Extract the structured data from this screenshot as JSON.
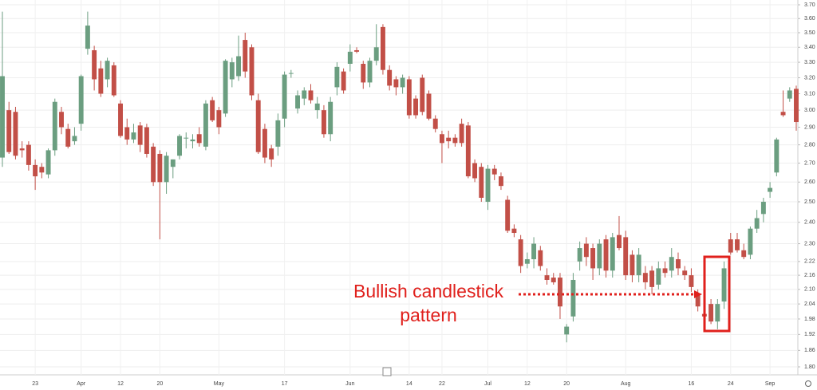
{
  "chart_data": {
    "type": "candlestick",
    "up_color": "#6b9e80",
    "down_color": "#c24f47",
    "log_scale": true,
    "grid": true,
    "ylim": [
      1.8,
      3.7
    ],
    "yticks": [
      {
        "value": 3.7,
        "label": "3.70"
      },
      {
        "value": 3.6,
        "label": "3.60"
      },
      {
        "value": 3.5,
        "label": "3.50"
      },
      {
        "value": 3.4,
        "label": "3.40"
      },
      {
        "value": 3.3,
        "label": "3.30"
      },
      {
        "value": 3.2,
        "label": "3.20"
      },
      {
        "value": 3.1,
        "label": "3.10"
      },
      {
        "value": 3.0,
        "label": "3.00"
      },
      {
        "value": 2.9,
        "label": "2.90"
      },
      {
        "value": 2.8,
        "label": "2.80"
      },
      {
        "value": 2.7,
        "label": "2.70"
      },
      {
        "value": 2.6,
        "label": "2.60"
      },
      {
        "value": 2.5,
        "label": "2.50"
      },
      {
        "value": 2.4,
        "label": "2.40"
      },
      {
        "value": 2.3,
        "label": "2.30"
      },
      {
        "value": 2.22,
        "label": "2.22"
      },
      {
        "value": 2.16,
        "label": "2.16"
      },
      {
        "value": 2.1,
        "label": "2.10"
      },
      {
        "value": 2.04,
        "label": "2.04"
      },
      {
        "value": 1.98,
        "label": "1.98"
      },
      {
        "value": 1.92,
        "label": "1.92"
      },
      {
        "value": 1.86,
        "label": "1.86"
      },
      {
        "value": 1.8,
        "label": "1.80"
      }
    ],
    "categories": [
      null,
      null,
      null,
      null,
      null,
      "23",
      null,
      null,
      null,
      null,
      null,
      null,
      "Apr",
      null,
      null,
      null,
      null,
      null,
      "12",
      null,
      null,
      null,
      null,
      null,
      "20",
      null,
      null,
      null,
      null,
      null,
      null,
      null,
      null,
      "May",
      null,
      null,
      null,
      null,
      null,
      null,
      null,
      null,
      null,
      "17",
      null,
      null,
      null,
      null,
      null,
      null,
      null,
      null,
      null,
      "Jun",
      null,
      null,
      null,
      null,
      null,
      null,
      null,
      null,
      "14",
      null,
      null,
      null,
      null,
      "22",
      null,
      null,
      null,
      null,
      null,
      null,
      "Jul",
      null,
      null,
      null,
      null,
      null,
      "12",
      null,
      null,
      null,
      null,
      null,
      "20",
      null,
      null,
      null,
      null,
      null,
      null,
      null,
      null,
      "Aug",
      null,
      null,
      null,
      null,
      null,
      null,
      null,
      null,
      null,
      "16",
      null,
      null,
      null,
      null,
      null,
      "24",
      null,
      null,
      null,
      null,
      null,
      "Sep",
      null,
      null,
      null,
      null
    ],
    "open": [
      2.73,
      3.0,
      2.99,
      2.78,
      2.8,
      2.69,
      2.68,
      2.64,
      2.77,
      2.99,
      2.89,
      2.82,
      2.92,
      3.39,
      3.38,
      3.26,
      3.19,
      3.28,
      3.04,
      2.9,
      2.83,
      2.91,
      2.9,
      2.79,
      2.75,
      2.6,
      2.68,
      2.74,
      2.84,
      2.82,
      2.86,
      2.79,
      3.06,
      3.0,
      2.98,
      3.19,
      3.21,
      3.45,
      3.4,
      3.06,
      2.89,
      2.78,
      2.79,
      2.95,
      3.23,
      3.01,
      3.07,
      3.12,
      3.0,
      3.0,
      2.86,
      3.14,
      3.24,
      3.29,
      3.38,
      3.29,
      3.17,
      3.31,
      3.54,
      3.25,
      3.19,
      3.14,
      3.19,
      3.07,
      3.2,
      3.1,
      2.95,
      2.86,
      2.84,
      2.84,
      2.92,
      2.91,
      2.7,
      2.68,
      2.5,
      2.67,
      2.63,
      2.51,
      2.37,
      2.32,
      2.21,
      2.23,
      2.27,
      2.16,
      2.15,
      2.15,
      1.92,
      1.99,
      2.22,
      2.3,
      2.28,
      2.19,
      2.32,
      2.18,
      2.34,
      2.33,
      2.25,
      2.16,
      2.17,
      2.18,
      2.12,
      2.19,
      2.18,
      2.23,
      2.18,
      2.16,
      2.08,
      2.0,
      2.04,
      1.97,
      2.05,
      2.32,
      2.32,
      2.27,
      2.25,
      2.37,
      2.44,
      2.55,
      2.65,
      2.99,
      3.07,
      3.13
    ],
    "high": [
      3.65,
      3.05,
      3.02,
      2.82,
      2.82,
      2.72,
      2.7,
      2.78,
      3.07,
      3.02,
      2.92,
      2.9,
      3.22,
      3.65,
      3.41,
      3.31,
      3.33,
      3.3,
      3.06,
      2.95,
      2.92,
      2.93,
      2.92,
      2.81,
      2.77,
      2.76,
      2.72,
      2.86,
      2.87,
      2.86,
      2.9,
      3.06,
      3.08,
      3.02,
      3.32,
      3.33,
      3.48,
      3.5,
      3.42,
      3.1,
      2.92,
      2.8,
      2.98,
      3.24,
      3.25,
      3.12,
      3.14,
      3.16,
      3.08,
      3.03,
      3.08,
      3.3,
      3.26,
      3.42,
      3.4,
      3.31,
      3.33,
      3.56,
      3.56,
      3.28,
      3.21,
      3.22,
      3.21,
      3.09,
      3.22,
      3.12,
      2.97,
      2.88,
      2.88,
      2.86,
      2.95,
      2.93,
      2.72,
      2.7,
      2.69,
      2.69,
      2.65,
      2.53,
      2.39,
      2.34,
      2.26,
      2.33,
      2.29,
      2.19,
      2.17,
      2.17,
      1.96,
      2.17,
      2.31,
      2.33,
      2.3,
      2.32,
      2.34,
      2.35,
      2.43,
      2.36,
      2.27,
      2.28,
      2.2,
      2.2,
      2.22,
      2.22,
      2.28,
      2.26,
      2.2,
      2.19,
      2.1,
      2.05,
      2.06,
      2.06,
      2.22,
      2.35,
      2.35,
      2.3,
      2.38,
      2.46,
      2.52,
      2.6,
      2.84,
      3.12,
      3.14,
      3.15
    ],
    "low": [
      2.68,
      2.75,
      2.72,
      2.73,
      2.66,
      2.56,
      2.62,
      2.62,
      2.74,
      2.86,
      2.78,
      2.8,
      2.88,
      3.35,
      3.12,
      3.08,
      3.14,
      3.08,
      2.84,
      2.8,
      2.81,
      2.76,
      2.73,
      2.58,
      2.32,
      2.54,
      2.62,
      2.72,
      2.78,
      2.78,
      2.79,
      2.77,
      2.93,
      2.86,
      2.96,
      3.14,
      3.18,
      3.2,
      3.06,
      2.75,
      2.7,
      2.68,
      2.74,
      2.9,
      3.2,
      2.98,
      3.03,
      3.04,
      2.95,
      2.84,
      2.82,
      3.09,
      3.1,
      3.24,
      3.36,
      3.13,
      3.14,
      3.28,
      3.22,
      3.12,
      3.09,
      3.1,
      2.95,
      2.95,
      2.97,
      2.94,
      2.87,
      2.7,
      2.78,
      2.79,
      2.79,
      2.62,
      2.6,
      2.5,
      2.46,
      2.61,
      2.56,
      2.35,
      2.33,
      2.17,
      2.19,
      2.19,
      2.18,
      2.12,
      2.12,
      1.98,
      1.89,
      1.97,
      2.18,
      2.2,
      2.14,
      2.16,
      2.15,
      2.15,
      2.27,
      2.14,
      2.13,
      2.13,
      2.1,
      2.08,
      2.1,
      2.15,
      2.15,
      2.16,
      2.14,
      2.09,
      2.01,
      1.97,
      1.96,
      1.94,
      2.02,
      2.25,
      2.26,
      2.23,
      2.23,
      2.35,
      2.4,
      2.52,
      2.63,
      2.96,
      3.05,
      2.88
    ],
    "close": [
      3.21,
      2.76,
      2.74,
      2.77,
      2.69,
      2.63,
      2.65,
      2.77,
      3.05,
      2.9,
      2.79,
      2.85,
      3.21,
      3.55,
      3.19,
      3.1,
      3.31,
      3.09,
      2.85,
      2.83,
      2.87,
      2.8,
      2.75,
      2.6,
      2.6,
      2.74,
      2.72,
      2.85,
      2.84,
      2.83,
      2.81,
      3.04,
      2.94,
      2.9,
      3.31,
      3.3,
      3.34,
      3.24,
      3.09,
      2.76,
      2.73,
      2.72,
      2.94,
      3.22,
      3.23,
      3.09,
      3.12,
      3.06,
      3.04,
      2.86,
      3.05,
      3.27,
      3.12,
      3.37,
      3.37,
      3.17,
      3.31,
      3.4,
      3.25,
      3.15,
      3.14,
      3.2,
      2.97,
      2.97,
      2.99,
      2.95,
      2.89,
      2.81,
      2.82,
      2.81,
      2.81,
      2.63,
      2.62,
      2.52,
      2.67,
      2.64,
      2.58,
      2.36,
      2.35,
      2.2,
      2.23,
      2.3,
      2.2,
      2.14,
      2.13,
      2.03,
      1.95,
      2.14,
      2.28,
      2.24,
      2.19,
      2.3,
      2.18,
      2.33,
      2.28,
      2.16,
      2.16,
      2.25,
      2.13,
      2.11,
      2.19,
      2.17,
      2.24,
      2.19,
      2.16,
      2.11,
      2.03,
      1.99,
      1.97,
      2.04,
      2.19,
      2.26,
      2.27,
      2.24,
      2.37,
      2.42,
      2.5,
      2.57,
      2.83,
      2.97,
      3.12,
      2.93
    ],
    "annotation": {
      "lines": [
        "Bullish candlestick",
        "pattern"
      ],
      "color": "#e0201c"
    }
  }
}
